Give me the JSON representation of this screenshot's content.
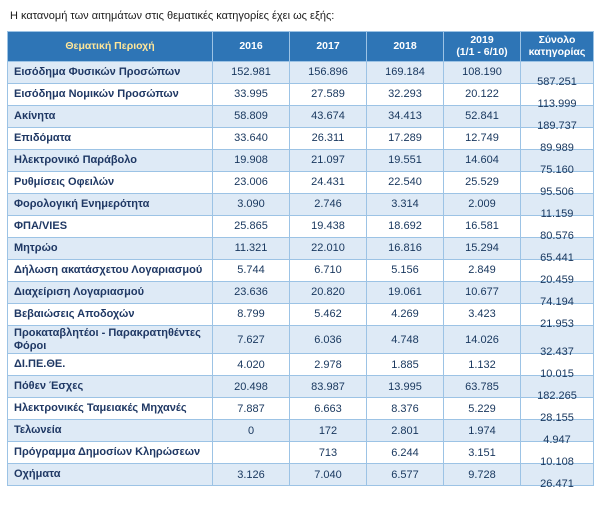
{
  "intro": "Η κατανομή των αιτημάτων στις θεματικές κατηγορίες έχει ως εξής:",
  "colors": {
    "header_bg": "#2e75b6",
    "header_text": "#ffffff",
    "header_label_text": "#ffe699",
    "stripe": "#deeaf6",
    "border": "#9cc3e5",
    "label_text": "#1f3864",
    "number_text": "#17365d"
  },
  "table": {
    "headers": [
      "Θεματική Περιοχή",
      "2016",
      "2017",
      "2018",
      "2019\n(1/1 - 6/10)",
      "Σύνολο\nκατηγορίας"
    ],
    "rows": [
      {
        "label": "Εισόδημα Φυσικών Προσώπων",
        "values": [
          "152.981",
          "156.896",
          "169.184",
          "108.190"
        ],
        "total": "587.251"
      },
      {
        "label": "Εισόδημα Νομικών Προσώπων",
        "values": [
          "33.995",
          "27.589",
          "32.293",
          "20.122"
        ],
        "total": "113.999"
      },
      {
        "label": "Ακίνητα",
        "values": [
          "58.809",
          "43.674",
          "34.413",
          "52.841"
        ],
        "total": "189.737"
      },
      {
        "label": "Επιδόματα",
        "values": [
          "33.640",
          "26.311",
          "17.289",
          "12.749"
        ],
        "total": "89.989"
      },
      {
        "label": "Ηλεκτρονικό Παράβολο",
        "values": [
          "19.908",
          "21.097",
          "19.551",
          "14.604"
        ],
        "total": "75.160"
      },
      {
        "label": "Ρυθμίσεις Οφειλών",
        "values": [
          "23.006",
          "24.431",
          "22.540",
          "25.529"
        ],
        "total": "95.506"
      },
      {
        "label": "Φορολογική Ενημερότητα",
        "values": [
          "3.090",
          "2.746",
          "3.314",
          "2.009"
        ],
        "total": "11.159"
      },
      {
        "label": "ΦΠΑ/VIES",
        "values": [
          "25.865",
          "19.438",
          "18.692",
          "16.581"
        ],
        "total": "80.576"
      },
      {
        "label": "Μητρώο",
        "values": [
          "11.321",
          "22.010",
          "16.816",
          "15.294"
        ],
        "total": "65.441"
      },
      {
        "label": "Δήλωση ακατάσχετου Λογαριασμού",
        "values": [
          "5.744",
          "6.710",
          "5.156",
          "2.849"
        ],
        "total": "20.459"
      },
      {
        "label": "Διαχείριση Λογαριασμού",
        "values": [
          "23.636",
          "20.820",
          "19.061",
          "10.677"
        ],
        "total": "74.194"
      },
      {
        "label": "Βεβαιώσεις Αποδοχών",
        "values": [
          "8.799",
          "5.462",
          "4.269",
          "3.423"
        ],
        "total": "21.953"
      },
      {
        "label": "Προκαταβλητέοι - Παρακρατηθέντες Φόροι",
        "values": [
          "7.627",
          "6.036",
          "4.748",
          "14.026"
        ],
        "total": "32.437"
      },
      {
        "label": "ΔΙ.ΠΕ.ΘΕ.",
        "values": [
          "4.020",
          "2.978",
          "1.885",
          "1.132"
        ],
        "total": "10.015"
      },
      {
        "label": "Πόθεν Έσχες",
        "values": [
          "20.498",
          "83.987",
          "13.995",
          "63.785"
        ],
        "total": "182.265"
      },
      {
        "label": "Ηλεκτρονικές Ταμειακές Μηχανές",
        "values": [
          "7.887",
          "6.663",
          "8.376",
          "5.229"
        ],
        "total": "28.155"
      },
      {
        "label": "Τελωνεία",
        "values": [
          "0",
          "172",
          "2.801",
          "1.974"
        ],
        "total": "4.947"
      },
      {
        "label": "Πρόγραμμα Δημοσίων Κληρώσεων",
        "values": [
          "",
          "713",
          "6.244",
          "3.151"
        ],
        "total": "10.108"
      },
      {
        "label": "Οχήματα",
        "values": [
          "3.126",
          "7.040",
          "6.577",
          "9.728"
        ],
        "total": "26.471"
      }
    ]
  }
}
